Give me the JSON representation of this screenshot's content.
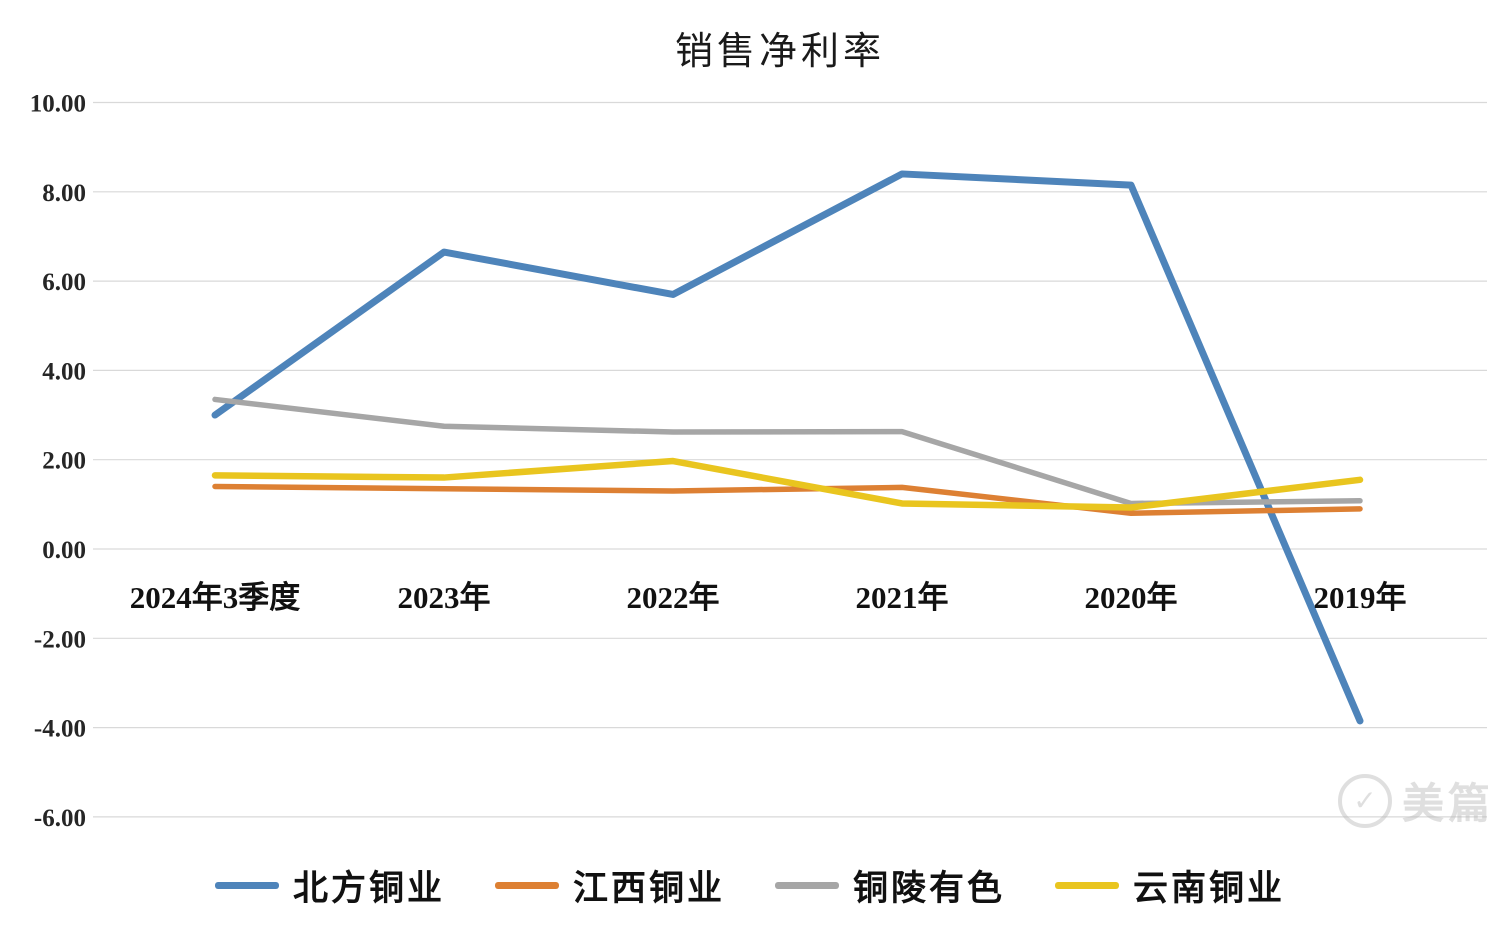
{
  "chart_data": {
    "type": "line",
    "title": "销售净利率",
    "categories": [
      "2024年3季度",
      "2023年",
      "2022年",
      "2021年",
      "2020年",
      "2019年"
    ],
    "series": [
      {
        "name": "北方铜业",
        "color": "#4E84BA",
        "values": [
          3.0,
          6.65,
          5.7,
          8.4,
          8.15,
          -3.85
        ]
      },
      {
        "name": "江西铜业",
        "color": "#DD8033",
        "values": [
          1.4,
          1.35,
          1.3,
          1.38,
          0.8,
          0.9
        ]
      },
      {
        "name": "铜陵有色",
        "color": "#A6A6A6",
        "values": [
          3.35,
          2.75,
          2.62,
          2.63,
          1.02,
          1.08
        ]
      },
      {
        "name": "云南铜业",
        "color": "#E9C51F",
        "values": [
          1.65,
          1.6,
          1.97,
          1.02,
          0.93,
          1.55
        ]
      }
    ],
    "ylim": [
      -6,
      10
    ],
    "ytick_step": 2,
    "ytick_labels": [
      "10.00",
      "8.00",
      "6.00",
      "4.00",
      "2.00",
      "0.00",
      "-2.00",
      "-4.00",
      "-6.00"
    ],
    "grid": true,
    "legend_position": "bottom",
    "xlabel": "",
    "ylabel": ""
  },
  "colors": {
    "gridline": "#D9D9D9",
    "axis_text": "#262626"
  },
  "watermark": {
    "text": "美篇",
    "icon": "check-icon"
  }
}
